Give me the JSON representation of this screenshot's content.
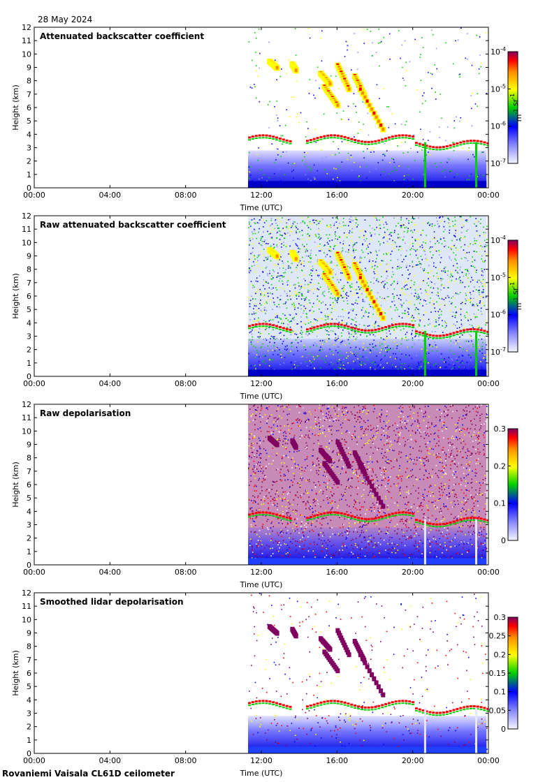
{
  "date": "28 May 2024",
  "footer": "Rovaniemi Vaisala CL61D ceilometer",
  "colors": {
    "cmap": [
      "#ffffff",
      "#8c8cff",
      "#0000ff",
      "#00d000",
      "#ffff00",
      "#ff8c00",
      "#ff0000",
      "#800060"
    ]
  },
  "chart_data": [
    {
      "type": "heatmap",
      "title": "Attenuated backscatter coefficient",
      "xlabel": "Time (UTC)",
      "ylabel": "Height (km)",
      "x_ticks": [
        "00:00",
        "04:00",
        "08:00",
        "12:00",
        "16:00",
        "20:00",
        "00:00"
      ],
      "y_ticks": [
        "0",
        "1",
        "2",
        "3",
        "4",
        "5",
        "6",
        "7",
        "8",
        "9",
        "10",
        "11",
        "12"
      ],
      "xlim_hours": [
        0,
        24
      ],
      "ylim": [
        0,
        12
      ],
      "data_start_hour": 11.3,
      "colorbar": {
        "ticks": [
          "10-7",
          "10-6",
          "10-5",
          "10-4"
        ],
        "label": "m-1 sr-1",
        "scale": "log"
      },
      "features": [
        {
          "name": "boundary layer",
          "from_hour": 11.3,
          "to_hour": 23.9,
          "top_km": 2.8
        },
        {
          "name": "cloud layer",
          "from_hour": 11.3,
          "to_hour": 23.9,
          "height_km": 3.6
        },
        {
          "name": "descending cloud",
          "from_hour": 15.0,
          "to_hour": 18.5,
          "height_from_km": 9.0,
          "height_to_km": 4.5
        }
      ]
    },
    {
      "type": "heatmap",
      "title": "Raw attenuated backscatter coefficient",
      "xlabel": "Time (UTC)",
      "ylabel": "Height (km)",
      "x_ticks": [
        "00:00",
        "04:00",
        "08:00",
        "12:00",
        "16:00",
        "20:00",
        "00:00"
      ],
      "y_ticks": [
        "0",
        "1",
        "2",
        "3",
        "4",
        "5",
        "6",
        "7",
        "8",
        "9",
        "10",
        "11",
        "12"
      ],
      "xlim_hours": [
        0,
        24
      ],
      "ylim": [
        0,
        12
      ],
      "data_start_hour": 11.3,
      "colorbar": {
        "ticks": [
          "10-7",
          "10-6",
          "10-5",
          "10-4"
        ],
        "label": "m-1 sr-1",
        "scale": "log"
      }
    },
    {
      "type": "heatmap",
      "title": "Raw depolarisation",
      "xlabel": "Time (UTC)",
      "ylabel": "Height (km)",
      "x_ticks": [
        "00:00",
        "04:00",
        "08:00",
        "12:00",
        "16:00",
        "20:00",
        "00:00"
      ],
      "y_ticks": [
        "0",
        "1",
        "2",
        "3",
        "4",
        "5",
        "6",
        "7",
        "8",
        "9",
        "10",
        "11",
        "12"
      ],
      "xlim_hours": [
        0,
        24
      ],
      "ylim": [
        0,
        12
      ],
      "data_start_hour": 11.3,
      "colorbar": {
        "ticks": [
          "0",
          "0.1",
          "0.2",
          "0.3"
        ],
        "scale": "linear",
        "range": [
          0,
          0.3
        ]
      }
    },
    {
      "type": "heatmap",
      "title": "Smoothed lidar depolarisation",
      "xlabel": "Time (UTC)",
      "ylabel": "Height (km)",
      "x_ticks": [
        "00:00",
        "04:00",
        "08:00",
        "12:00",
        "16:00",
        "20:00",
        "00:00"
      ],
      "y_ticks": [
        "0",
        "1",
        "2",
        "3",
        "4",
        "5",
        "6",
        "7",
        "8",
        "9",
        "10",
        "11",
        "12"
      ],
      "xlim_hours": [
        0,
        24
      ],
      "ylim": [
        0,
        12
      ],
      "data_start_hour": 11.3,
      "colorbar": {
        "ticks": [
          "0",
          "0.05",
          "0.1",
          "0.15",
          "0.2",
          "0.25",
          "0.3"
        ],
        "scale": "linear",
        "range": [
          0,
          0.3
        ]
      }
    }
  ]
}
